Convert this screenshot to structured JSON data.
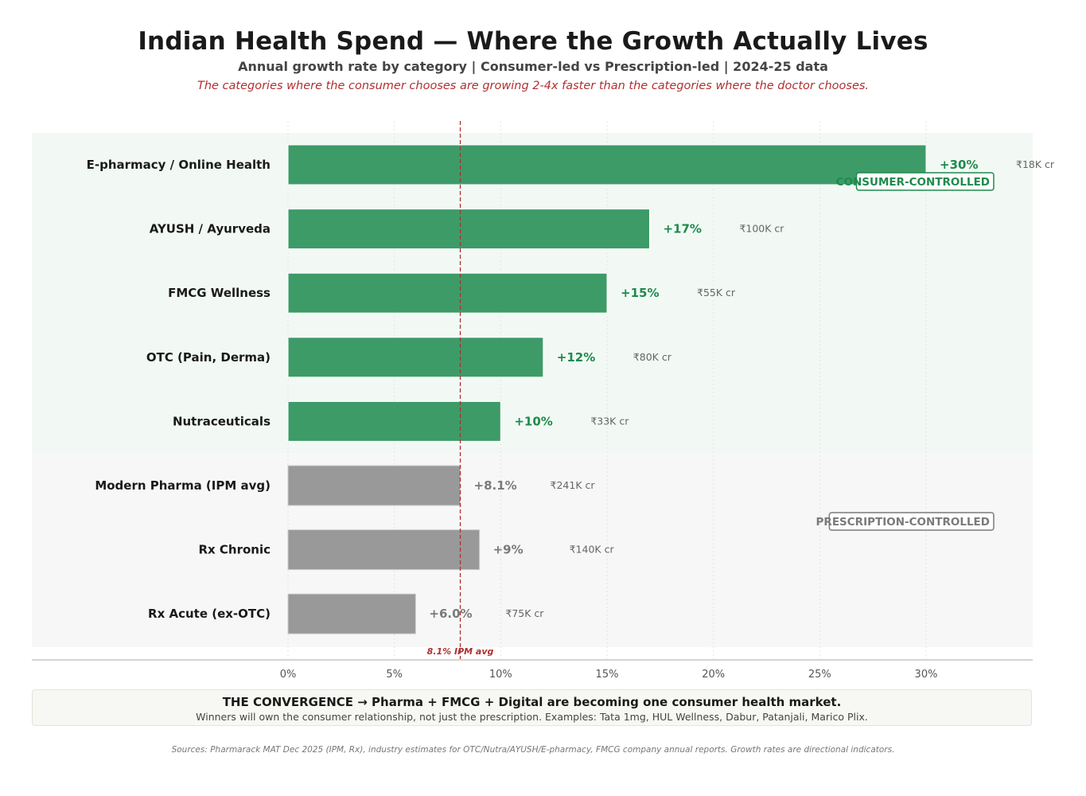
{
  "header": {
    "title": "Indian Health Spend  —  Where the Growth Actually Lives",
    "subtitle": "Annual growth rate by category  |  Consumer-led vs Prescription-led  |  2024-25 data",
    "tagline": "The categories where the consumer chooses are growing 2-4x faster than the categories where the doctor chooses."
  },
  "chart_data": {
    "type": "bar",
    "orientation": "horizontal",
    "categories": [
      "E-pharmacy / Online Health",
      "AYUSH / Ayurveda",
      "FMCG Wellness",
      "OTC (Pain, Derma)",
      "Nutraceuticals",
      "Modern Pharma (IPM avg)",
      "Rx Chronic",
      "Rx Acute (ex-OTC)"
    ],
    "values": [
      30,
      17,
      15,
      12,
      10,
      8.1,
      9,
      6.0
    ],
    "value_labels": [
      "+30%",
      "+17%",
      "+15%",
      "+12%",
      "+10%",
      "+8.1%",
      "+9%",
      "+6.0%"
    ],
    "market_size_labels": [
      "₹18K cr",
      "₹100K cr",
      "₹55K cr",
      "₹80K cr",
      "₹33K cr",
      "₹241K cr",
      "₹140K cr",
      "₹75K cr"
    ],
    "groups": [
      "consumer",
      "consumer",
      "consumer",
      "consumer",
      "consumer",
      "prescription",
      "prescription",
      "prescription"
    ],
    "group_labels": {
      "consumer": "CONSUMER-CONTROLLED",
      "prescription": "PRESCRIPTION-CONTROLLED"
    },
    "colors": {
      "consumer": "#3d9b68",
      "consumer_text": "#1f8a4c",
      "consumer_band": "#f2f9f5",
      "prescription": "#999999",
      "prescription_text": "#7a7a7a",
      "prescription_band": "#f7f7f7",
      "reference": "#b03030"
    },
    "x_ticks": [
      "0%",
      "5%",
      "10%",
      "15%",
      "20%",
      "25%",
      "30%"
    ],
    "x_tick_values": [
      0,
      5,
      10,
      15,
      20,
      25,
      30
    ],
    "xlim": [
      0,
      35
    ],
    "reference_line": {
      "value": 8.1,
      "label": "8.1% IPM avg"
    },
    "grid": true
  },
  "callout": {
    "title": "THE CONVERGENCE → Pharma + FMCG + Digital are becoming one consumer health market.",
    "body": "Winners will own the consumer relationship, not just the prescription. Examples: Tata 1mg, HUL Wellness, Dabur, Patanjali, Marico Plix."
  },
  "sources": "Sources: Pharmarack MAT Dec 2025 (IPM, Rx), industry estimates for OTC/Nutra/AYUSH/E-pharmacy, FMCG company annual reports. Growth rates are directional indicators."
}
